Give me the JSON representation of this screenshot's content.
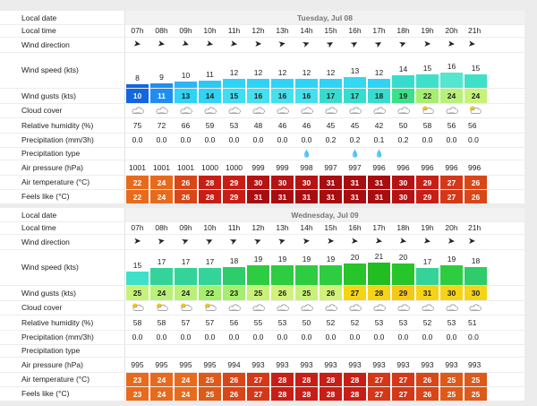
{
  "labels": {
    "local_date": "Local date",
    "local_time": "Local time",
    "wind_direction": "Wind direction",
    "wind_speed": "Wind speed (kts)",
    "wind_gusts": "Wind gusts (kts)",
    "cloud_cover": "Cloud cover",
    "humidity": "Relative humidity (%)",
    "precipitation": "Precipitation (mm/3h)",
    "precip_type": "Precipitation type",
    "pressure": "Air pressure (hPa)",
    "air_temp": "Air temperature (°C)",
    "feels_like": "Feels like (°C)"
  },
  "colors": {
    "gust_blue_dark": "#1266e0",
    "cyan": "#2fd3f5",
    "cyan_light": "#55e6f5",
    "teal": "#38dccf",
    "green": "#2ecc40",
    "lime": "#c7f27a",
    "yellow": "#f5d417",
    "orange": "#f39a1c",
    "temp_orange": "#e86a1c",
    "temp_red": "#c81e16",
    "temp_dark_red": "#a80d10"
  },
  "days": [
    {
      "date": "Tuesday, Jul 08",
      "times": [
        "07h",
        "08h",
        "09h",
        "10h",
        "11h",
        "12h",
        "13h",
        "14h",
        "15h",
        "16h",
        "17h",
        "18h",
        "19h",
        "20h",
        "21h"
      ],
      "wind_dir_deg": [
        100,
        100,
        110,
        105,
        100,
        90,
        80,
        70,
        60,
        60,
        60,
        70,
        90,
        95,
        95
      ],
      "wind_speed": [
        "8",
        "9",
        "10",
        "11",
        "12",
        "12",
        "12",
        "12",
        "12",
        "13",
        "12",
        "14",
        "15",
        "16",
        "15"
      ],
      "wind_speed_num": [
        8,
        9,
        10,
        11,
        12,
        12,
        12,
        12,
        12,
        13,
        12,
        14,
        15,
        16,
        15
      ],
      "wind_speed_colors": [
        "#1266e0",
        "#1f8ef0",
        "#2fb5f5",
        "#2fc8f5",
        "#2fd3f5",
        "#2fd3f5",
        "#2fd3f5",
        "#2fd3f5",
        "#2fd3f5",
        "#34d8f0",
        "#2fd3f5",
        "#38dccf",
        "#3fe0c8",
        "#55e6d0",
        "#3fe0c8"
      ],
      "wind_gusts": [
        "10",
        "11",
        "13",
        "14",
        "15",
        "16",
        "16",
        "16",
        "17",
        "17",
        "18",
        "19",
        "22",
        "24",
        "24"
      ],
      "wind_gust_colors": [
        "#1266e0",
        "#1f8ef0",
        "#2fd3f5",
        "#2fd3f5",
        "#3fdcf2",
        "#45e0ee",
        "#45e0ee",
        "#45e0ee",
        "#38dccf",
        "#38dccf",
        "#38dccf",
        "#3ce08a",
        "#a6ee6e",
        "#b9f07a",
        "#c7f27a"
      ],
      "cloud": [
        "cloud",
        "cloud",
        "cloud",
        "cloud",
        "cloud",
        "cloud",
        "cloud",
        "cloud",
        "cloud",
        "cloud",
        "cloud",
        "cloud",
        "sun-cloud",
        "cloud",
        "sun-cloud"
      ],
      "humidity": [
        "75",
        "72",
        "66",
        "59",
        "53",
        "48",
        "46",
        "46",
        "45",
        "45",
        "42",
        "50",
        "58",
        "56",
        "56"
      ],
      "precipitation": [
        "0.0",
        "0.0",
        "0.0",
        "0.0",
        "0.0",
        "0.0",
        "0.0",
        "0.0",
        "0.2",
        "0.2",
        "0.1",
        "0.2",
        "0.0",
        "0.0",
        "0.0"
      ],
      "precip_type": [
        "",
        "",
        "",
        "",
        "",
        "",
        "",
        "rain",
        "",
        "rain",
        "rain",
        "",
        "",
        "",
        ""
      ],
      "pressure": [
        "1001",
        "1001",
        "1001",
        "1000",
        "1000",
        "999",
        "999",
        "998",
        "997",
        "997",
        "996",
        "996",
        "996",
        "996",
        "996"
      ],
      "air_temp": [
        "22",
        "24",
        "26",
        "28",
        "29",
        "30",
        "30",
        "30",
        "31",
        "31",
        "31",
        "30",
        "29",
        "27",
        "26"
      ],
      "air_temp_colors": [
        "#e86a1c",
        "#e86a1c",
        "#d94618",
        "#c81e16",
        "#c81e16",
        "#b51314",
        "#b51314",
        "#b51314",
        "#a80d10",
        "#a80d10",
        "#a80d10",
        "#b51314",
        "#c81e16",
        "#d43818",
        "#d94618"
      ],
      "feels_like": [
        "22",
        "24",
        "26",
        "28",
        "29",
        "31",
        "31",
        "31",
        "31",
        "31",
        "31",
        "30",
        "29",
        "27",
        "26"
      ],
      "feels_like_colors": [
        "#e86a1c",
        "#e86a1c",
        "#d94618",
        "#c81e16",
        "#c81e16",
        "#a80d10",
        "#a80d10",
        "#a80d10",
        "#a80d10",
        "#a80d10",
        "#a80d10",
        "#b51314",
        "#c81e16",
        "#d43818",
        "#d94618"
      ]
    },
    {
      "date": "Wednesday, Jul 09",
      "times": [
        "07h",
        "08h",
        "09h",
        "10h",
        "11h",
        "12h",
        "13h",
        "14h",
        "15h",
        "16h",
        "17h",
        "18h",
        "19h",
        "20h",
        "21h"
      ],
      "wind_dir_deg": [
        90,
        80,
        70,
        65,
        65,
        70,
        75,
        85,
        90,
        95,
        100,
        100,
        100,
        95,
        90
      ],
      "wind_speed": [
        "15",
        "17",
        "17",
        "17",
        "18",
        "19",
        "19",
        "19",
        "19",
        "20",
        "21",
        "20",
        "17",
        "19",
        "18"
      ],
      "wind_speed_num": [
        15,
        17,
        17,
        17,
        18,
        19,
        19,
        19,
        19,
        20,
        21,
        20,
        17,
        19,
        18
      ],
      "wind_speed_colors": [
        "#3fe0c8",
        "#34d39a",
        "#34d39a",
        "#34d39a",
        "#2ecc6a",
        "#2ecc40",
        "#2ecc40",
        "#2ecc40",
        "#2ecc40",
        "#27c42a",
        "#22bd22",
        "#27c42a",
        "#34d39a",
        "#2ecc40",
        "#2ecc6a"
      ],
      "wind_gusts": [
        "25",
        "24",
        "24",
        "22",
        "23",
        "25",
        "26",
        "25",
        "26",
        "27",
        "28",
        "29",
        "31",
        "30",
        "30"
      ],
      "wind_gust_colors": [
        "#c7f27a",
        "#b9f07a",
        "#b9f07a",
        "#a6ee6e",
        "#a6ee6e",
        "#c7f27a",
        "#d3f07a",
        "#c7f27a",
        "#d3f07a",
        "#f5d417",
        "#f5d417",
        "#f5c817",
        "#f5d417",
        "#f5d417",
        "#f5d417"
      ],
      "cloud": [
        "sun-cloud",
        "sun-cloud",
        "sun-cloud",
        "sun-cloud",
        "cloud",
        "cloud",
        "cloud",
        "cloud",
        "cloud",
        "cloud",
        "cloud",
        "cloud",
        "cloud",
        "cloud",
        "cloud"
      ],
      "humidity": [
        "58",
        "58",
        "57",
        "57",
        "56",
        "55",
        "53",
        "50",
        "52",
        "52",
        "53",
        "53",
        "52",
        "53",
        "51"
      ],
      "precipitation": [
        "0.0",
        "0.0",
        "0.0",
        "0.0",
        "0.0",
        "0.0",
        "0.0",
        "0.0",
        "0.0",
        "0.0",
        "0.0",
        "0.0",
        "0.0",
        "0.0",
        "0.0"
      ],
      "precip_type": [
        "",
        "",
        "",
        "",
        "",
        "",
        "",
        "",
        "",
        "",
        "",
        "",
        "",
        "",
        ""
      ],
      "pressure": [
        "995",
        "995",
        "995",
        "995",
        "994",
        "993",
        "993",
        "993",
        "993",
        "993",
        "993",
        "993",
        "993",
        "993",
        "993"
      ],
      "air_temp": [
        "23",
        "24",
        "24",
        "25",
        "26",
        "27",
        "28",
        "28",
        "28",
        "28",
        "27",
        "27",
        "26",
        "25",
        "25"
      ],
      "air_temp_colors": [
        "#e86a1c",
        "#e86a1c",
        "#e86a1c",
        "#dd5a1a",
        "#d94618",
        "#d43818",
        "#c81e16",
        "#c81e16",
        "#c81e16",
        "#c81e16",
        "#d43818",
        "#d43818",
        "#d94618",
        "#dd5a1a",
        "#dd5a1a"
      ],
      "feels_like": [
        "23",
        "24",
        "24",
        "25",
        "26",
        "27",
        "28",
        "28",
        "28",
        "28",
        "27",
        "27",
        "26",
        "25",
        "25"
      ],
      "feels_like_colors": [
        "#e86a1c",
        "#e86a1c",
        "#e86a1c",
        "#dd5a1a",
        "#d94618",
        "#d43818",
        "#c81e16",
        "#c81e16",
        "#c81e16",
        "#c81e16",
        "#d43818",
        "#d43818",
        "#d94618",
        "#dd5a1a",
        "#dd5a1a"
      ]
    }
  ]
}
